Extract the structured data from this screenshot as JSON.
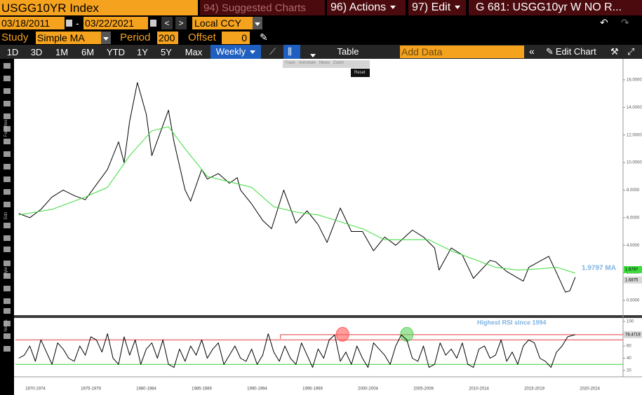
{
  "toolbar": {
    "security": "USGG10YR Index",
    "suggested": "94) Suggested Charts",
    "actions": "96) Actions",
    "edit": "97) Edit",
    "chart_name": "G 681: USGG10yr W NO R...",
    "start_date": "03/18/2011",
    "date_sep": "-",
    "end_date": "03/22/2021",
    "currency": "Local CCY",
    "study_label": "Study",
    "study": "Simple MA",
    "period_label": "Period",
    "period": "200",
    "offset_label": "Offset",
    "offset": "0",
    "ranges": [
      "1D",
      "3D",
      "1M",
      "6M",
      "YTD",
      "1Y",
      "5Y",
      "Max"
    ],
    "frequency": "Weekly",
    "table": "Table",
    "add_data": "Add Data",
    "edit_chart": "Edit Chart"
  },
  "popup": [
    "Track",
    "Annotate",
    "News",
    "Zoom"
  ],
  "reset": "Reset",
  "side_labels": [
    "Favorites",
    "Edit",
    "Style",
    "Nodes"
  ],
  "chart_data": [
    {
      "type": "line",
      "xlim": [
        1970.7,
        2025.5
      ],
      "ylim": [
        -1.07,
        17.47
      ],
      "yticks": [
        {
          "value": 0,
          "label": "0.0000"
        },
        {
          "value": 2,
          "label": "2.0000"
        },
        {
          "value": 4,
          "label": "4.0000"
        },
        {
          "value": 6,
          "label": "6.0000"
        },
        {
          "value": 8,
          "label": "8.0000"
        },
        {
          "value": 10,
          "label": "10.0000"
        },
        {
          "value": 12,
          "label": "12.0000"
        },
        {
          "value": 14,
          "label": "14.0000"
        },
        {
          "value": 16,
          "label": "16.0000"
        }
      ],
      "series": [
        {
          "color": "#000000",
          "x": [
            1971,
            1972,
            1973,
            1974,
            1975,
            1976,
            1977,
            1978,
            1979,
            1980,
            1980.5,
            1981,
            1981.7,
            1982.5,
            1983,
            1984.5,
            1985,
            1986,
            1986.5,
            1987.5,
            1988,
            1989,
            1990,
            1990.7,
            1991,
            1992,
            1993,
            1993.8,
            1994.9,
            1996,
            1997,
            1998,
            1998.8,
            2000,
            2001,
            2002,
            2003,
            2004,
            2005,
            2006.5,
            2007.5,
            2008.5,
            2008.9,
            2010,
            2011,
            2012,
            2013.5,
            2014,
            2015,
            2016.5,
            2017,
            2018.8,
            2019.5,
            2020.3,
            2020.7,
            2021.2
          ],
          "values": [
            6.3,
            6.0,
            6.6,
            7.5,
            8.0,
            7.6,
            7.3,
            8.4,
            9.5,
            11.5,
            10.0,
            13.0,
            15.8,
            13.5,
            10.5,
            13.8,
            11.5,
            8.0,
            7.2,
            9.5,
            8.8,
            9.2,
            8.5,
            8.9,
            8.0,
            7.0,
            5.8,
            5.2,
            8.0,
            5.6,
            6.5,
            5.5,
            4.2,
            6.7,
            5.0,
            5.0,
            3.6,
            4.6,
            4.0,
            5.1,
            4.6,
            3.8,
            2.2,
            3.8,
            3.3,
            1.6,
            2.9,
            2.8,
            2.1,
            1.4,
            2.4,
            3.2,
            2.0,
            0.6,
            0.7,
            1.6875
          ]
        },
        {
          "color": "#3ddc3d",
          "x": [
            1971,
            1974,
            1977,
            1979,
            1981,
            1983,
            1984.5,
            1986,
            1988,
            1990,
            1992,
            1994,
            1996,
            1998,
            2000,
            2002,
            2004,
            2006,
            2008,
            2010,
            2012,
            2014,
            2016,
            2018,
            2019.5,
            2021.2
          ],
          "values": [
            6.2,
            6.6,
            7.5,
            8.2,
            10.5,
            12.3,
            12.6,
            11.0,
            9.0,
            8.6,
            8.2,
            6.8,
            6.4,
            6.2,
            5.7,
            5.2,
            4.4,
            4.4,
            4.4,
            3.6,
            3.0,
            2.4,
            2.2,
            2.3,
            2.4,
            1.9797
          ]
        }
      ],
      "annotation": {
        "text": "1.9797 MA",
        "color": "#7fb3e3"
      }
    },
    {
      "type": "line",
      "xlim": [
        1970.7,
        2025.5
      ],
      "ylim": [
        13.1,
        104.6
      ],
      "yticks": [
        20,
        40,
        60,
        80,
        100
      ],
      "xticks": [
        {
          "value": 1972.5,
          "label": "1970-1974"
        },
        {
          "value": 1977.5,
          "label": "1975-1979"
        },
        {
          "value": 1982.5,
          "label": "1980-1984"
        },
        {
          "value": 1987.5,
          "label": "1985-1989"
        },
        {
          "value": 1992.5,
          "label": "1990-1994"
        },
        {
          "value": 1997.5,
          "label": "1995-1999"
        },
        {
          "value": 2002.5,
          "label": "2000-2004"
        },
        {
          "value": 2007.5,
          "label": "2005-2009"
        },
        {
          "value": 2012.5,
          "label": "2010-2014"
        },
        {
          "value": 2017.5,
          "label": "2015-2019"
        },
        {
          "value": 2022.5,
          "label": "2020-2024"
        }
      ],
      "series": [
        {
          "color": "#000000",
          "x": [
            1971,
            1971.5,
            1972,
            1972.5,
            1973,
            1973.5,
            1974,
            1974.5,
            1975,
            1975.5,
            1976,
            1976.5,
            1977,
            1977.5,
            1978,
            1978.5,
            1979,
            1979.5,
            1980,
            1980.5,
            1981,
            1981.5,
            1982,
            1982.5,
            1983,
            1983.5,
            1984,
            1984.5,
            1985,
            1985.5,
            1986,
            1986.5,
            1987,
            1987.5,
            1988,
            1988.5,
            1989,
            1989.5,
            1990,
            1990.5,
            1991,
            1991.5,
            1992,
            1992.5,
            1993,
            1993.5,
            1994,
            1994.5,
            1995,
            1995.5,
            1996,
            1996.5,
            1997,
            1997.5,
            1998,
            1998.5,
            1999,
            1999.5,
            2000,
            2000.5,
            2001,
            2001.5,
            2002,
            2002.5,
            2003,
            2003.5,
            2004,
            2004.5,
            2005,
            2005.5,
            2006,
            2006.5,
            2007,
            2007.5,
            2008,
            2008.5,
            2009,
            2009.5,
            2010,
            2010.5,
            2011,
            2011.5,
            2012,
            2012.5,
            2013,
            2013.5,
            2014,
            2014.5,
            2015,
            2015.5,
            2016,
            2016.5,
            2017,
            2017.5,
            2018,
            2018.5,
            2019,
            2019.5,
            2020,
            2020.5,
            2021.2
          ],
          "values": [
            40,
            45,
            60,
            35,
            70,
            50,
            30,
            65,
            55,
            40,
            35,
            60,
            45,
            75,
            70,
            50,
            80,
            40,
            30,
            75,
            45,
            70,
            30,
            55,
            65,
            40,
            70,
            30,
            25,
            55,
            35,
            60,
            45,
            70,
            40,
            55,
            65,
            30,
            45,
            60,
            40,
            35,
            55,
            30,
            45,
            80,
            50,
            35,
            60,
            40,
            30,
            65,
            45,
            25,
            55,
            40,
            70,
            78,
            35,
            50,
            30,
            60,
            40,
            25,
            65,
            55,
            45,
            30,
            60,
            78,
            70,
            40,
            35,
            60,
            25,
            30,
            65,
            45,
            55,
            40,
            65,
            30,
            25,
            55,
            60,
            40,
            45,
            70,
            35,
            50,
            30,
            60,
            70,
            65,
            40,
            35,
            25,
            50,
            60,
            75,
            78.4719
          ]
        }
      ],
      "reference_lines": [
        {
          "value": 70,
          "color": "#e03a3a"
        },
        {
          "value": 30,
          "color": "#3ccc3c"
        }
      ],
      "highest_line": {
        "value": 78.4719,
        "x_start": 1994.6,
        "color": "#e03a3a"
      },
      "annotation": {
        "text": "Highest RSI since 1994",
        "color": "#7fb3e3"
      },
      "highlights": [
        {
          "x": 2000.2,
          "y": 79,
          "color": "#ff5a5a"
        },
        {
          "x": 2006,
          "y": 79,
          "color": "#5fd35f"
        }
      ]
    }
  ]
}
